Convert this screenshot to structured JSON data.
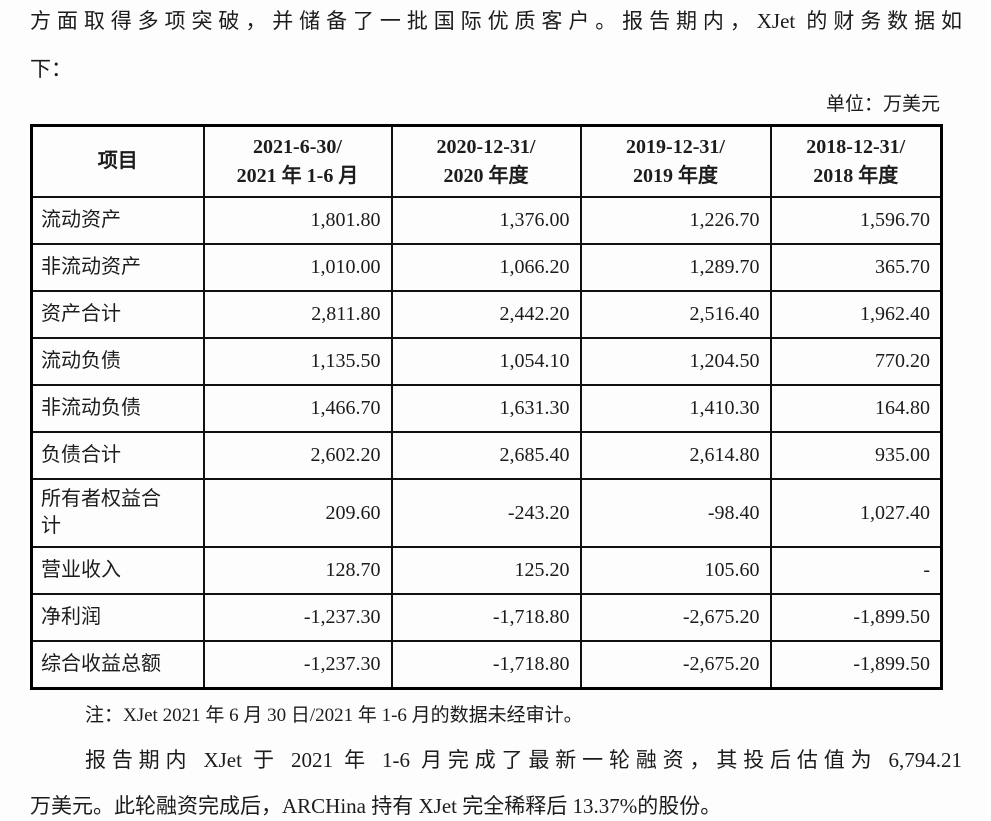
{
  "document": {
    "intro_line1": "方面取得多项突破，并储备了一批国际优质客户。报告期内，XJet 的财务数据如",
    "intro_line2": "下：",
    "unit_label": "单位：万美元",
    "note": "注：XJet 2021 年 6 月 30 日/2021 年 1-6 月的数据未经审计。",
    "closing_line1": "报告期内 XJet 于 2021 年 1-6 月完成了最新一轮融资，其投后估值为 6,794.21",
    "closing_line2": "万美元。此轮融资完成后，ARCHina 持有 XJet 完全稀释后 13.37%的股份。"
  },
  "table": {
    "header": {
      "item_col": "项目",
      "cols": [
        {
          "line1": "2021-6-30/",
          "line2": "2021 年 1-6 月"
        },
        {
          "line1": "2020-12-31/",
          "line2": "2020 年度"
        },
        {
          "line1": "2019-12-31/",
          "line2": "2019 年度"
        },
        {
          "line1": "2018-12-31/",
          "line2": "2018 年度"
        }
      ]
    },
    "rows": [
      {
        "label": "流动资产",
        "values": [
          "1,801.80",
          "1,376.00",
          "1,226.70",
          "1,596.70"
        ]
      },
      {
        "label": "非流动资产",
        "values": [
          "1,010.00",
          "1,066.20",
          "1,289.70",
          "365.70"
        ]
      },
      {
        "label": "资产合计",
        "values": [
          "2,811.80",
          "2,442.20",
          "2,516.40",
          "1,962.40"
        ]
      },
      {
        "label": "流动负债",
        "values": [
          "1,135.50",
          "1,054.10",
          "1,204.50",
          "770.20"
        ]
      },
      {
        "label": "非流动负债",
        "values": [
          "1,466.70",
          "1,631.30",
          "1,410.30",
          "164.80"
        ]
      },
      {
        "label": "负债合计",
        "values": [
          "2,602.20",
          "2,685.40",
          "2,614.80",
          "935.00"
        ]
      },
      {
        "label": "所有者权益合\n计",
        "values": [
          "209.60",
          "-243.20",
          "-98.40",
          "1,027.40"
        ]
      },
      {
        "label": "营业收入",
        "values": [
          "128.70",
          "125.20",
          "105.60",
          "-"
        ]
      },
      {
        "label": "净利润",
        "values": [
          "-1,237.30",
          "-1,718.80",
          "-2,675.20",
          "-1,899.50"
        ]
      },
      {
        "label": "综合收益总额",
        "values": [
          "-1,237.30",
          "-1,718.80",
          "-2,675.20",
          "-1,899.50"
        ]
      }
    ]
  }
}
